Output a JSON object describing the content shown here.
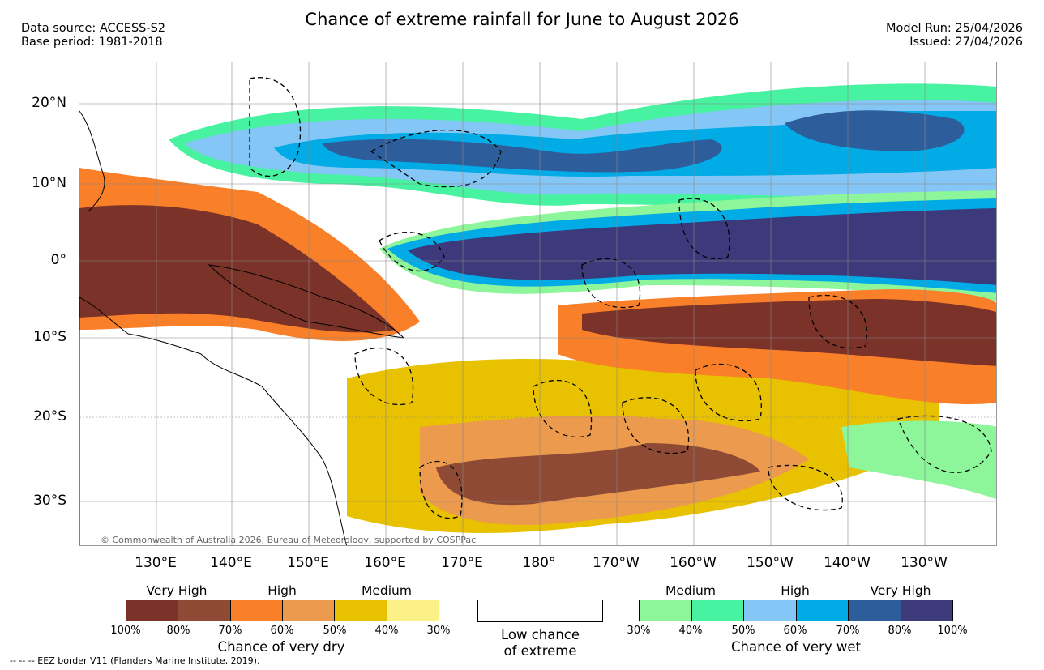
{
  "header": {
    "title": "Chance of extreme rainfall for June to August 2026",
    "data_source": "Data source: ACCESS-S2",
    "base_period": "Base period: 1981-2018",
    "model_run": "Model Run: 25/04/2026",
    "issued": "Issued: 27/04/2026"
  },
  "map": {
    "lat_labels": [
      "20°N",
      "10°N",
      "0°",
      "10°S",
      "20°S",
      "30°S"
    ],
    "lon_labels": [
      "130°E",
      "140°E",
      "150°E",
      "160°E",
      "170°E",
      "180°",
      "170°W",
      "160°W",
      "150°W",
      "140°W",
      "130°W"
    ],
    "copyright": "© Commonwealth of Australia 2026, Bureau of Meteorology, supported by COSPPac"
  },
  "legend": {
    "dry": {
      "categories": [
        "Very High",
        "High",
        "Medium"
      ],
      "ticks": [
        "100%",
        "80%",
        "70%",
        "60%",
        "50%",
        "40%",
        "30%"
      ],
      "colors": [
        "#7b3228",
        "#8e4a35",
        "#f97f29",
        "#ec9a4e",
        "#e8c100",
        "#fbf186"
      ],
      "title": "Chance of very dry"
    },
    "low": {
      "label_line1": "Low chance",
      "label_line2": "of extreme"
    },
    "wet": {
      "categories": [
        "Medium",
        "High",
        "Very High"
      ],
      "ticks": [
        "30%",
        "40%",
        "50%",
        "60%",
        "70%",
        "80%",
        "100%"
      ],
      "colors": [
        "#8df59a",
        "#47f2a0",
        "#84c7f6",
        "#00abe6",
        "#2e5d9c",
        "#3c3a7a"
      ],
      "title": "Chance of very wet"
    }
  },
  "footer": {
    "eez_note": "--  --  -- EEZ border V11 (Flanders Marine Institute, 2019)."
  }
}
